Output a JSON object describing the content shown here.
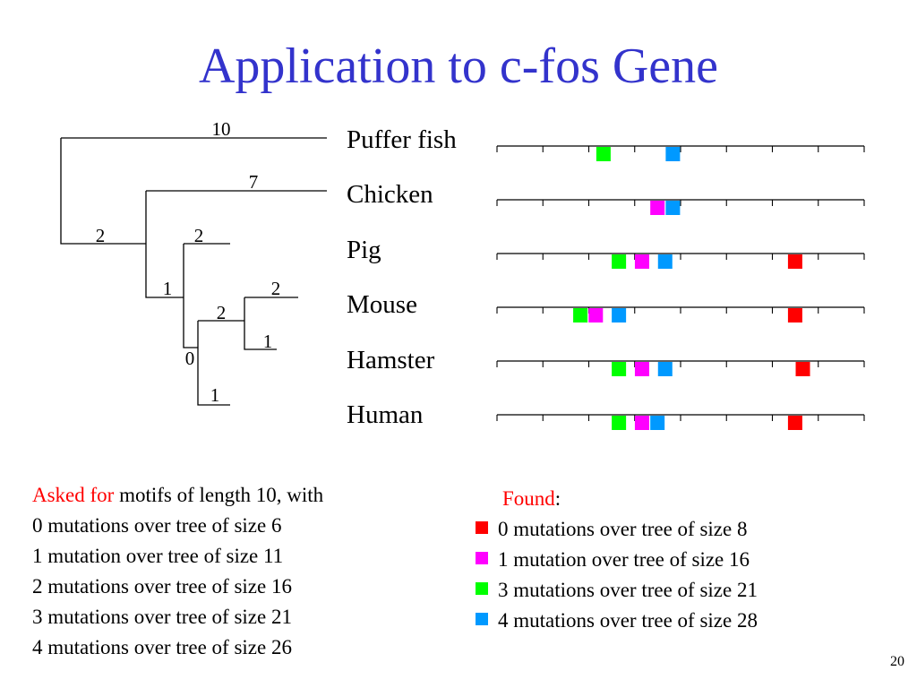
{
  "title": "Application to c-fos Gene",
  "colors": {
    "title": "#3333cc",
    "highlight": "#ff0000",
    "red": "#ff0000",
    "magenta": "#ff00ff",
    "green": "#00ff00",
    "blue": "#0099ff"
  },
  "tree": {
    "branch_labels": [
      "10",
      "7",
      "2",
      "2",
      "1",
      "2",
      "2",
      "1",
      "0",
      "1"
    ]
  },
  "species": [
    "Puffer fish",
    "Chicken",
    "Pig",
    "Mouse",
    "Hamster",
    "Human"
  ],
  "motif_tracks": [
    {
      "species": "Puffer fish",
      "motifs": [
        {
          "type": "green",
          "pos": 0.29
        },
        {
          "type": "blue",
          "pos": 0.479
        }
      ]
    },
    {
      "species": "Chicken",
      "motifs": [
        {
          "type": "magenta",
          "pos": 0.437
        },
        {
          "type": "blue",
          "pos": 0.479
        }
      ]
    },
    {
      "species": "Pig",
      "motifs": [
        {
          "type": "green",
          "pos": 0.332
        },
        {
          "type": "magenta",
          "pos": 0.395
        },
        {
          "type": "blue",
          "pos": 0.458
        },
        {
          "type": "red",
          "pos": 0.812
        }
      ]
    },
    {
      "species": "Mouse",
      "motifs": [
        {
          "type": "green",
          "pos": 0.227
        },
        {
          "type": "magenta",
          "pos": 0.269
        },
        {
          "type": "blue",
          "pos": 0.332
        },
        {
          "type": "red",
          "pos": 0.812
        }
      ]
    },
    {
      "species": "Hamster",
      "motifs": [
        {
          "type": "green",
          "pos": 0.332
        },
        {
          "type": "magenta",
          "pos": 0.395
        },
        {
          "type": "blue",
          "pos": 0.458
        },
        {
          "type": "red",
          "pos": 0.833
        }
      ]
    },
    {
      "species": "Human",
      "motifs": [
        {
          "type": "green",
          "pos": 0.332
        },
        {
          "type": "magenta",
          "pos": 0.395
        },
        {
          "type": "blue",
          "pos": 0.437
        },
        {
          "type": "red",
          "pos": 0.812
        }
      ]
    }
  ],
  "asked": {
    "prefix": "Asked for",
    "rest": " motifs of length 10, with",
    "lines": [
      "0 mutations over tree of size 6",
      "1 mutation over tree of size 11",
      "2 mutations over tree of size 16",
      "3 mutations over tree of size 21",
      "4 mutations over tree of size 26"
    ]
  },
  "found": {
    "label": "Found",
    "colon": ":",
    "items": [
      {
        "color": "red",
        "text": "0 mutations over tree of size 8"
      },
      {
        "color": "magenta",
        "text": "1 mutation over tree of size 16"
      },
      {
        "color": "green",
        "text": "3 mutations over tree of size 21"
      },
      {
        "color": "blue",
        "text": "4 mutations over tree of size 28"
      }
    ]
  },
  "page_number": "20"
}
